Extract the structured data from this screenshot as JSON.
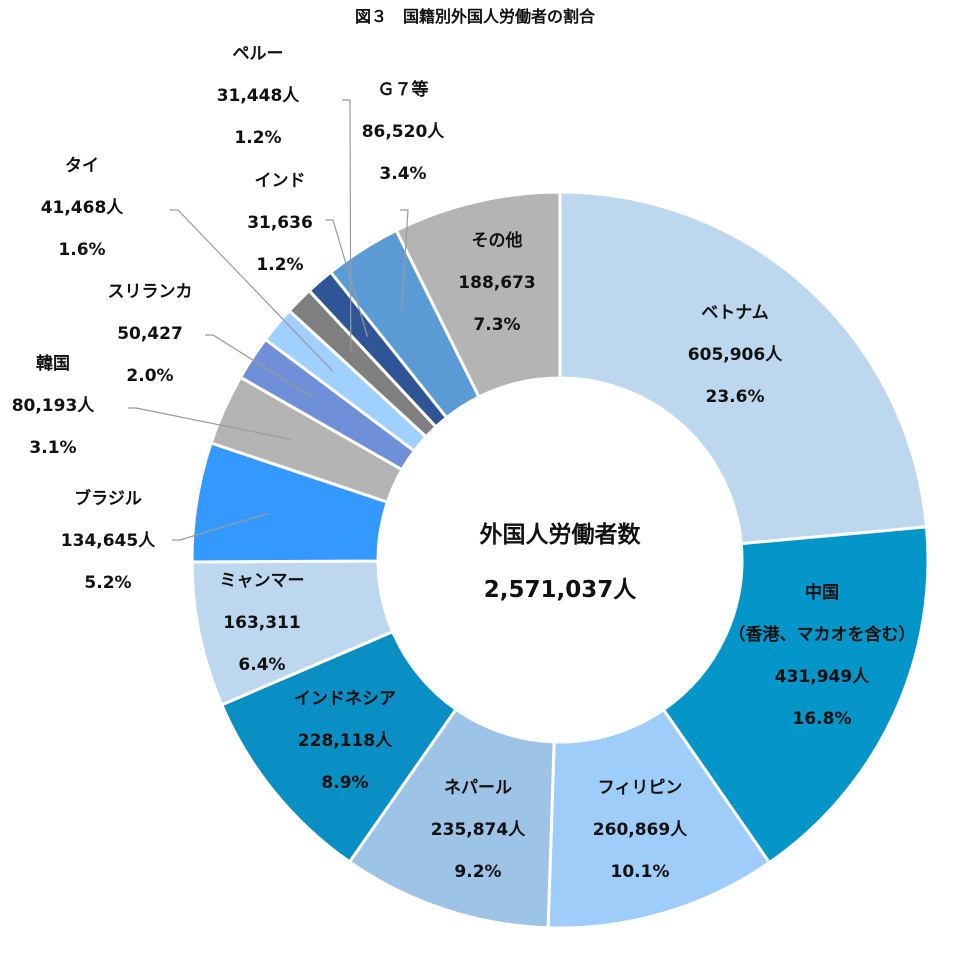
{
  "chart_data": {
    "type": "pie",
    "variant": "donut",
    "title": "図３　国籍別外国人労働者の割合",
    "center": {
      "label": "外国人労働者数",
      "total": "2,571,037人"
    },
    "slices": [
      {
        "name": "ベトナム",
        "value": 605906,
        "value_label": "605,906人",
        "pct_label": "23.6%",
        "color": "#bdd7ee"
      },
      {
        "name": "中国",
        "name_extra": "（香港、マカオを含む）",
        "value": 431949,
        "value_label": "431,949人",
        "pct_label": "16.8%",
        "color": "#0596c9"
      },
      {
        "name": "フィリピン",
        "value": 260869,
        "value_label": "260,869人",
        "pct_label": "10.1%",
        "color": "#9dcdf8"
      },
      {
        "name": "ネパール",
        "value": 235874,
        "value_label": "235,874人",
        "pct_label": "9.2%",
        "color": "#9dc3e6"
      },
      {
        "name": "インドネシア",
        "value": 228118,
        "value_label": "228,118人",
        "pct_label": "8.9%",
        "color": "#0a8fc4"
      },
      {
        "name": "ミャンマー",
        "value": 163311,
        "value_label": "163,311",
        "pct_label": "6.4%",
        "color": "#bdd7ee"
      },
      {
        "name": "ブラジル",
        "value": 134645,
        "value_label": "134,645人",
        "pct_label": "5.2%",
        "color": "#3399ff"
      },
      {
        "name": "韓国",
        "value": 80193,
        "value_label": "80,193人",
        "pct_label": "3.1%",
        "color": "#b4b4b4"
      },
      {
        "name": "スリランカ",
        "value": 50427,
        "value_label": "50,427",
        "pct_label": "2.0%",
        "color": "#6f8fd8"
      },
      {
        "name": "タイ",
        "value": 41468,
        "value_label": "41,468人",
        "pct_label": "1.6%",
        "color": "#9fd0ff"
      },
      {
        "name": "ペルー",
        "value": 31448,
        "value_label": "31,448人",
        "pct_label": "1.2%",
        "color": "#7f7f7f"
      },
      {
        "name": "インド",
        "value": 31636,
        "value_label": "31,636",
        "pct_label": "1.2%",
        "color": "#2f5597"
      },
      {
        "name": "Ｇ７等",
        "value": 86520,
        "value_label": "86,520人",
        "pct_label": "3.4%",
        "color": "#5b9bd5"
      },
      {
        "name": "その他",
        "value": 188673,
        "value_label": "188,673",
        "pct_label": "7.3%",
        "color": "#b4b4b4"
      }
    ]
  }
}
